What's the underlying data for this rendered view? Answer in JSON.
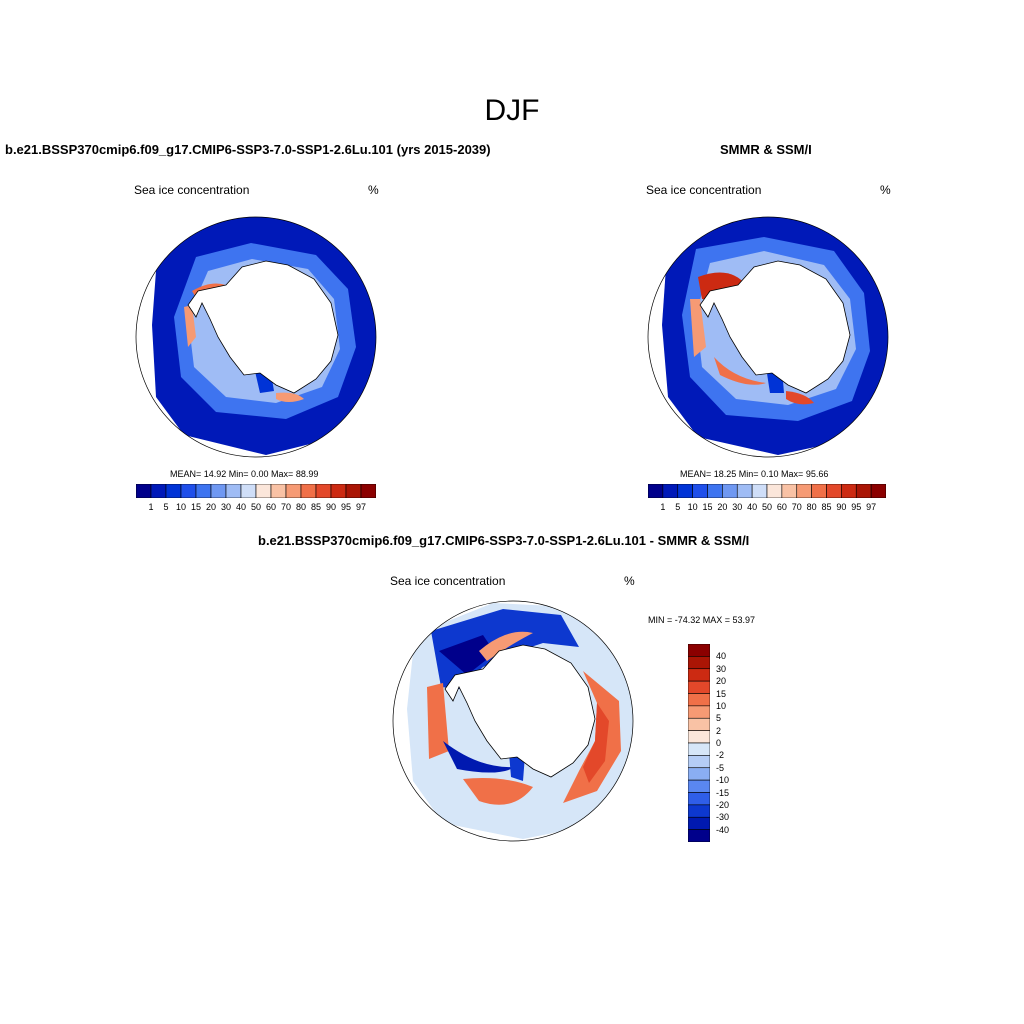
{
  "title": "DJF",
  "panels": {
    "model": {
      "title": "b.e21.BSSP370cmip6.f09_g17.CMIP6-SSP3-7.0-SSP1-2.6Lu.101 (yrs 2015-2039)",
      "left_label": "Sea ice concentration",
      "right_label": "%",
      "stats": "MEAN=  14.92  Min=   0.00  Max=  88.99"
    },
    "obs": {
      "title": "SMMR & SSM/I",
      "left_label": "Sea ice concentration",
      "right_label": "%",
      "stats": "MEAN=  18.25  Min=   0.10  Max=  95.66"
    },
    "diff": {
      "title": "b.e21.BSSP370cmip6.f09_g17.CMIP6-SSP3-7.0-SSP1-2.6Lu.101 - SMMR & SSM/I",
      "left_label": "Sea ice concentration",
      "right_label": "%",
      "stats": "MIN = -74.32 MAX =  53.97"
    }
  },
  "colorbar_conc": {
    "levels": [
      "1",
      "5",
      "10",
      "15",
      "20",
      "30",
      "40",
      "50",
      "60",
      "70",
      "80",
      "85",
      "90",
      "95",
      "97"
    ],
    "colors": [
      "#00008b",
      "#0019b8",
      "#0033d6",
      "#1f4fea",
      "#3e74f0",
      "#6f98f2",
      "#9fbcf5",
      "#cfdef8",
      "#fbe6da",
      "#f9c2a5",
      "#f69a74",
      "#f07048",
      "#e3482a",
      "#cc2a12",
      "#aa1505",
      "#8b0000"
    ]
  },
  "colorbar_diff": {
    "levels": [
      "40",
      "30",
      "20",
      "15",
      "10",
      "5",
      "2",
      "0",
      "-2",
      "-5",
      "-10",
      "-15",
      "-20",
      "-30",
      "-40"
    ],
    "colors": [
      "#8b0000",
      "#aa1505",
      "#cc2a12",
      "#e3482a",
      "#f07048",
      "#f69a74",
      "#f9c2a5",
      "#fbe6da",
      "#d6e6f8",
      "#b5cdf6",
      "#8aaef3",
      "#5a87f0",
      "#2f5ee8",
      "#0d38cf",
      "#0019b0",
      "#00008b"
    ]
  }
}
